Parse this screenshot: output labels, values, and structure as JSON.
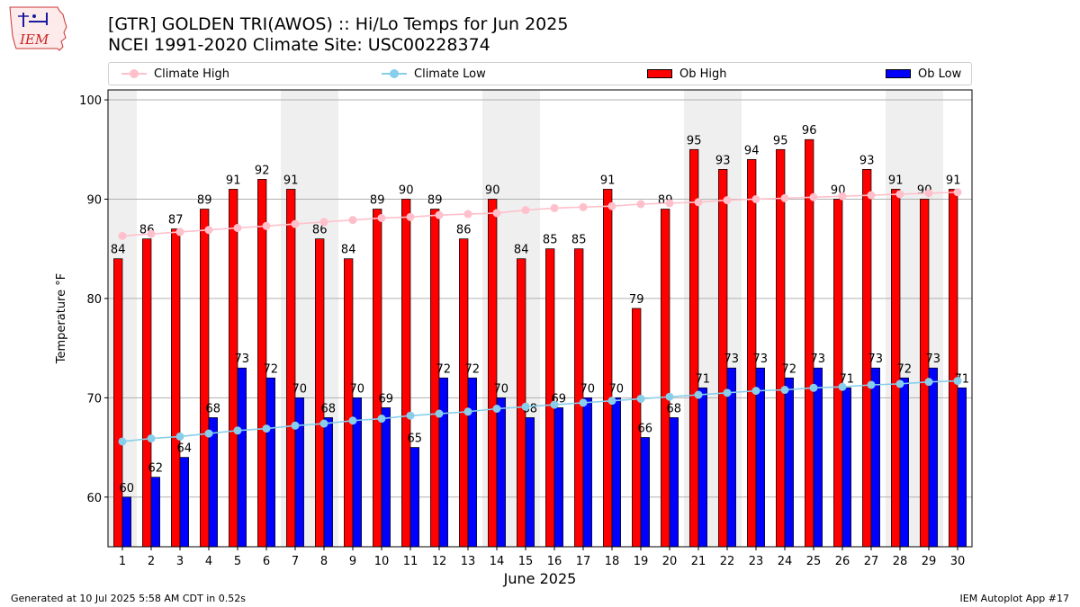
{
  "header": {
    "title": "[GTR] GOLDEN TRI(AWOS) :: Hi/Lo Temps for Jun 2025",
    "subtitle": "NCEI 1991-2020 Climate Site: USC00228374",
    "logo_text": "IEM"
  },
  "legend": {
    "items": [
      {
        "label": "Climate High",
        "kind": "line",
        "color": "#ffc0cb"
      },
      {
        "label": "Climate Low",
        "kind": "line",
        "color": "#87ceeb"
      },
      {
        "label": "Ob High",
        "kind": "bar",
        "color": "#ff0000"
      },
      {
        "label": "Ob Low",
        "kind": "bar",
        "color": "#0000ff"
      }
    ]
  },
  "footer": {
    "left": "Generated at 10 Jul 2025 5:58 AM CDT in 0.52s",
    "right": "IEM Autoplot App #17"
  },
  "chart_data": {
    "type": "bar",
    "xlabel": "June 2025",
    "ylabel": "Temperature °F",
    "ylim": [
      55,
      101
    ],
    "yticks": [
      60,
      70,
      80,
      90,
      100
    ],
    "grid": "y",
    "legend_position": "top",
    "weekend_shading": true,
    "shaded_days": [
      1,
      7,
      8,
      14,
      15,
      21,
      22,
      28,
      29
    ],
    "categories": [
      "1",
      "2",
      "3",
      "4",
      "5",
      "6",
      "7",
      "8",
      "9",
      "10",
      "11",
      "12",
      "13",
      "14",
      "15",
      "16",
      "17",
      "18",
      "19",
      "20",
      "21",
      "22",
      "23",
      "24",
      "25",
      "26",
      "27",
      "28",
      "29",
      "30"
    ],
    "series": [
      {
        "name": "Ob High",
        "type": "bar",
        "color": "#ff0000",
        "values": [
          84,
          86,
          87,
          89,
          91,
          92,
          91,
          86,
          84,
          89,
          90,
          89,
          86,
          90,
          84,
          85,
          85,
          91,
          79,
          89,
          95,
          93,
          94,
          95,
          96,
          90,
          93,
          91,
          90,
          91
        ]
      },
      {
        "name": "Ob Low",
        "type": "bar",
        "color": "#0000ff",
        "values": [
          60,
          62,
          64,
          68,
          73,
          72,
          70,
          68,
          70,
          69,
          65,
          72,
          72,
          70,
          68,
          69,
          70,
          70,
          66,
          68,
          71,
          73,
          73,
          72,
          73,
          71,
          73,
          72,
          73,
          71
        ]
      },
      {
        "name": "Climate High",
        "type": "line",
        "color": "#ffc0cb",
        "values": [
          86.3,
          86.5,
          86.7,
          86.9,
          87.1,
          87.3,
          87.5,
          87.7,
          87.9,
          88.1,
          88.2,
          88.4,
          88.5,
          88.6,
          88.9,
          89.1,
          89.2,
          89.3,
          89.5,
          89.6,
          89.7,
          89.9,
          90.0,
          90.1,
          90.2,
          90.3,
          90.4,
          90.5,
          90.6,
          90.7
        ]
      },
      {
        "name": "Climate Low",
        "type": "line",
        "color": "#87ceeb",
        "values": [
          65.6,
          65.9,
          66.1,
          66.4,
          66.7,
          66.9,
          67.2,
          67.4,
          67.7,
          67.9,
          68.2,
          68.4,
          68.6,
          68.9,
          69.1,
          69.3,
          69.5,
          69.7,
          69.9,
          70.1,
          70.3,
          70.5,
          70.7,
          70.8,
          71.0,
          71.1,
          71.3,
          71.4,
          71.6,
          71.7
        ]
      }
    ]
  }
}
